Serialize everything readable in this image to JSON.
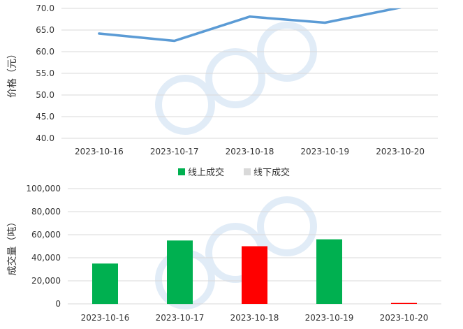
{
  "chart_data": [
    {
      "type": "line",
      "ylabel": "价格（元）",
      "categories": [
        "2023-10-16",
        "2023-10-17",
        "2023-10-18",
        "2023-10-19",
        "2023-10-20"
      ],
      "series": [
        {
          "values": [
            64.2,
            62.5,
            68.1,
            66.7,
            70.2
          ],
          "color": "#5b9bd5"
        }
      ],
      "ylim": [
        40,
        70
      ],
      "yticks": [
        "40.0",
        "45.0",
        "50.0",
        "55.0",
        "60.0",
        "65.0",
        "70.0"
      ],
      "ytick_values": [
        40,
        45,
        50,
        55,
        60,
        65,
        70
      ],
      "grid": true
    },
    {
      "type": "bar",
      "ylabel": "成交量（吨）",
      "categories": [
        "2023-10-16",
        "2023-10-17",
        "2023-10-18",
        "2023-10-19",
        "2023-10-20"
      ],
      "values": [
        35000,
        55000,
        50000,
        56000,
        800
      ],
      "bar_colors": [
        "#00b050",
        "#00b050",
        "#ff0000",
        "#00b050",
        "#ff0000"
      ],
      "legend": [
        {
          "name": "线上成交",
          "color": "#00b050"
        },
        {
          "name": "线下成交",
          "color": "#d9d9d9"
        }
      ],
      "legend_position": "top",
      "ylim": [
        0,
        100000
      ],
      "yticks": [
        "0",
        "20,000",
        "40,000",
        "60,000",
        "80,000",
        "100,000"
      ],
      "ytick_values": [
        0,
        20000,
        40000,
        60000,
        80000,
        100000
      ],
      "grid": true
    }
  ]
}
